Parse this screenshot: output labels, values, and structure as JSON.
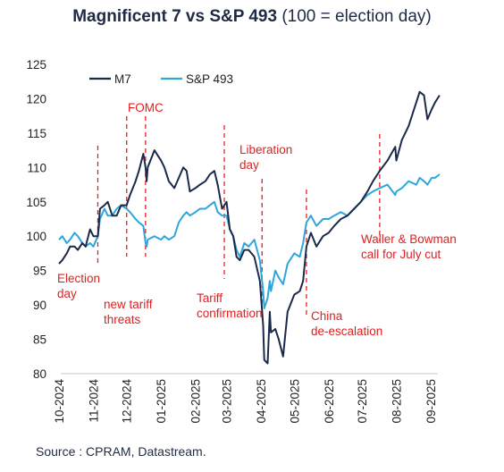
{
  "chart_data": {
    "type": "line",
    "title": "Magnificent 7 vs S&P 493",
    "subtitle": "(100 = election day)",
    "source": "Source : CPRAM, Datastream.",
    "y_ticks": [
      "125",
      "120",
      "115",
      "110",
      "105",
      "100",
      "95",
      "90",
      "85",
      "80"
    ],
    "ylim": [
      80,
      125
    ],
    "x_ticks": [
      {
        "label": "10-2024",
        "date": "2024-10-01"
      },
      {
        "label": "11-2024",
        "date": "2024-11-01"
      },
      {
        "label": "12-2024",
        "date": "2024-12-01"
      },
      {
        "label": "01-2025",
        "date": "2025-01-01"
      },
      {
        "label": "02-2025",
        "date": "2025-02-01"
      },
      {
        "label": "03-2025",
        "date": "2025-03-01"
      },
      {
        "label": "04-2025",
        "date": "2025-04-01"
      },
      {
        "label": "05-2025",
        "date": "2025-05-01"
      },
      {
        "label": "06-2025",
        "date": "2025-06-01"
      },
      {
        "label": "07-2025",
        "date": "2025-07-01"
      },
      {
        "label": "08-2025",
        "date": "2025-08-01"
      },
      {
        "label": "09-2025",
        "date": "2025-09-01"
      }
    ],
    "legend_position": "top-left",
    "series": [
      {
        "name": "M7",
        "color": "#1b2a4a",
        "points": [
          [
            "2024-10-01",
            96
          ],
          [
            "2024-10-04",
            96.5
          ],
          [
            "2024-10-08",
            97.5
          ],
          [
            "2024-10-11",
            98.5
          ],
          [
            "2024-10-15",
            98.5
          ],
          [
            "2024-10-18",
            98
          ],
          [
            "2024-10-22",
            99
          ],
          [
            "2024-10-25",
            98.5
          ],
          [
            "2024-10-29",
            101
          ],
          [
            "2024-11-01",
            100
          ],
          [
            "2024-11-05",
            100
          ],
          [
            "2024-11-07",
            104
          ],
          [
            "2024-11-11",
            104.5
          ],
          [
            "2024-11-14",
            105
          ],
          [
            "2024-11-18",
            103
          ],
          [
            "2024-11-22",
            103
          ],
          [
            "2024-11-26",
            104.5
          ],
          [
            "2024-12-01",
            104.5
          ],
          [
            "2024-12-04",
            106
          ],
          [
            "2024-12-09",
            108
          ],
          [
            "2024-12-12",
            109.5
          ],
          [
            "2024-12-16",
            112
          ],
          [
            "2024-12-18",
            110
          ],
          [
            "2024-12-19",
            108
          ],
          [
            "2024-12-20",
            110
          ],
          [
            "2024-12-26",
            112.5
          ],
          [
            "2025-01-01",
            111
          ],
          [
            "2025-01-04",
            110
          ],
          [
            "2025-01-08",
            108
          ],
          [
            "2025-01-13",
            107
          ],
          [
            "2025-01-17",
            108.5
          ],
          [
            "2025-01-21",
            110
          ],
          [
            "2025-01-24",
            109.5
          ],
          [
            "2025-01-27",
            106.5
          ],
          [
            "2025-02-01",
            107
          ],
          [
            "2025-02-05",
            107.5
          ],
          [
            "2025-02-10",
            108
          ],
          [
            "2025-02-14",
            109
          ],
          [
            "2025-02-18",
            109.5
          ],
          [
            "2025-02-21",
            107.5
          ],
          [
            "2025-02-25",
            104
          ],
          [
            "2025-03-01",
            105
          ],
          [
            "2025-03-04",
            101
          ],
          [
            "2025-03-07",
            100
          ],
          [
            "2025-03-10",
            97
          ],
          [
            "2025-03-13",
            96.5
          ],
          [
            "2025-03-17",
            98
          ],
          [
            "2025-03-21",
            98
          ],
          [
            "2025-03-26",
            97
          ],
          [
            "2025-03-31",
            93.5
          ],
          [
            "2025-04-03",
            87
          ],
          [
            "2025-04-04",
            82
          ],
          [
            "2025-04-07",
            81.5
          ],
          [
            "2025-04-09",
            89
          ],
          [
            "2025-04-10",
            86
          ],
          [
            "2025-04-14",
            86.5
          ],
          [
            "2025-04-17",
            85
          ],
          [
            "2025-04-21",
            82.5
          ],
          [
            "2025-04-25",
            89
          ],
          [
            "2025-05-01",
            91.5
          ],
          [
            "2025-05-06",
            92
          ],
          [
            "2025-05-09",
            93.5
          ],
          [
            "2025-05-12",
            98.5
          ],
          [
            "2025-05-16",
            100.5
          ],
          [
            "2025-05-21",
            98.5
          ],
          [
            "2025-05-27",
            100
          ],
          [
            "2025-06-01",
            100.5
          ],
          [
            "2025-06-06",
            101.5
          ],
          [
            "2025-06-12",
            102.5
          ],
          [
            "2025-06-18",
            103
          ],
          [
            "2025-06-24",
            104
          ],
          [
            "2025-06-30",
            105
          ],
          [
            "2025-07-06",
            106.5
          ],
          [
            "2025-07-11",
            108
          ],
          [
            "2025-07-17",
            109.5
          ],
          [
            "2025-07-24",
            111
          ],
          [
            "2025-07-31",
            113
          ],
          [
            "2025-08-01",
            111
          ],
          [
            "2025-08-06",
            114
          ],
          [
            "2025-08-12",
            116
          ],
          [
            "2025-08-19",
            119.5
          ],
          [
            "2025-08-22",
            121
          ],
          [
            "2025-08-26",
            120.5
          ],
          [
            "2025-08-29",
            117
          ],
          [
            "2025-09-02",
            118.5
          ],
          [
            "2025-09-05",
            119.5
          ],
          [
            "2025-09-09",
            120.5
          ]
        ]
      },
      {
        "name": "S&P 493",
        "color": "#2ea6dc",
        "points": [
          [
            "2024-10-01",
            99.5
          ],
          [
            "2024-10-04",
            100
          ],
          [
            "2024-10-08",
            99
          ],
          [
            "2024-10-11",
            99.5
          ],
          [
            "2024-10-15",
            100.5
          ],
          [
            "2024-10-18",
            100
          ],
          [
            "2024-10-22",
            99
          ],
          [
            "2024-10-25",
            98.5
          ],
          [
            "2024-10-29",
            99
          ],
          [
            "2024-11-01",
            98.5
          ],
          [
            "2024-11-05",
            100
          ],
          [
            "2024-11-07",
            102.5
          ],
          [
            "2024-11-11",
            104
          ],
          [
            "2024-11-14",
            103
          ],
          [
            "2024-11-18",
            103
          ],
          [
            "2024-11-22",
            104
          ],
          [
            "2024-11-26",
            104.5
          ],
          [
            "2024-12-01",
            104
          ],
          [
            "2024-12-04",
            103.5
          ],
          [
            "2024-12-09",
            102.5
          ],
          [
            "2024-12-12",
            102
          ],
          [
            "2024-12-16",
            101.5
          ],
          [
            "2024-12-18",
            99
          ],
          [
            "2024-12-19",
            98.5
          ],
          [
            "2024-12-20",
            99.5
          ],
          [
            "2024-12-26",
            100
          ],
          [
            "2025-01-01",
            99.5
          ],
          [
            "2025-01-04",
            100
          ],
          [
            "2025-01-08",
            99.5
          ],
          [
            "2025-01-13",
            100
          ],
          [
            "2025-01-17",
            102
          ],
          [
            "2025-01-21",
            103
          ],
          [
            "2025-01-24",
            103.5
          ],
          [
            "2025-01-27",
            103
          ],
          [
            "2025-02-01",
            103.5
          ],
          [
            "2025-02-05",
            104
          ],
          [
            "2025-02-10",
            104
          ],
          [
            "2025-02-14",
            104.5
          ],
          [
            "2025-02-18",
            105
          ],
          [
            "2025-02-21",
            103.5
          ],
          [
            "2025-02-25",
            103
          ],
          [
            "2025-03-01",
            103
          ],
          [
            "2025-03-04",
            101
          ],
          [
            "2025-03-07",
            100
          ],
          [
            "2025-03-10",
            98
          ],
          [
            "2025-03-13",
            97
          ],
          [
            "2025-03-17",
            99
          ],
          [
            "2025-03-21",
            98.5
          ],
          [
            "2025-03-26",
            99.5
          ],
          [
            "2025-03-31",
            96.5
          ],
          [
            "2025-04-03",
            92
          ],
          [
            "2025-04-04",
            89.5
          ],
          [
            "2025-04-07",
            91
          ],
          [
            "2025-04-09",
            93.5
          ],
          [
            "2025-04-10",
            92
          ],
          [
            "2025-04-14",
            95
          ],
          [
            "2025-04-17",
            94
          ],
          [
            "2025-04-21",
            93
          ],
          [
            "2025-04-25",
            96
          ],
          [
            "2025-05-01",
            97.5
          ],
          [
            "2025-05-06",
            97
          ],
          [
            "2025-05-09",
            99
          ],
          [
            "2025-05-12",
            102
          ],
          [
            "2025-05-16",
            103
          ],
          [
            "2025-05-21",
            101.5
          ],
          [
            "2025-05-27",
            102.5
          ],
          [
            "2025-06-01",
            102.5
          ],
          [
            "2025-06-06",
            103
          ],
          [
            "2025-06-12",
            103.5
          ],
          [
            "2025-06-18",
            103
          ],
          [
            "2025-06-24",
            104
          ],
          [
            "2025-06-30",
            105
          ],
          [
            "2025-07-06",
            106
          ],
          [
            "2025-07-11",
            106.5
          ],
          [
            "2025-07-17",
            107
          ],
          [
            "2025-07-24",
            107.5
          ],
          [
            "2025-07-31",
            106
          ],
          [
            "2025-08-01",
            106.5
          ],
          [
            "2025-08-06",
            107
          ],
          [
            "2025-08-12",
            108
          ],
          [
            "2025-08-19",
            107.5
          ],
          [
            "2025-08-22",
            108.5
          ],
          [
            "2025-08-26",
            108
          ],
          [
            "2025-08-29",
            107.5
          ],
          [
            "2025-09-02",
            108.5
          ],
          [
            "2025-09-05",
            108.5
          ],
          [
            "2025-09-09",
            109
          ]
        ]
      }
    ],
    "annotations": [
      {
        "date": "2024-11-05",
        "label_lines": [
          "Election",
          "day"
        ]
      },
      {
        "date": "2024-12-18",
        "label_lines": [
          "FOMC"
        ]
      },
      {
        "date": "2024-12-01",
        "label_lines": [
          "new tariff",
          "threats"
        ]
      },
      {
        "date": "2025-02-27",
        "label_lines": [
          "Tariff",
          "confirmation"
        ]
      },
      {
        "date": "2025-04-02",
        "label_lines": [
          "Liberation",
          "day"
        ]
      },
      {
        "date": "2025-05-12",
        "label_lines": [
          "China",
          "de-escalation"
        ]
      },
      {
        "date": "2025-07-17",
        "label_lines": [
          "Waller & Bowman",
          "call for July cut"
        ]
      }
    ]
  }
}
